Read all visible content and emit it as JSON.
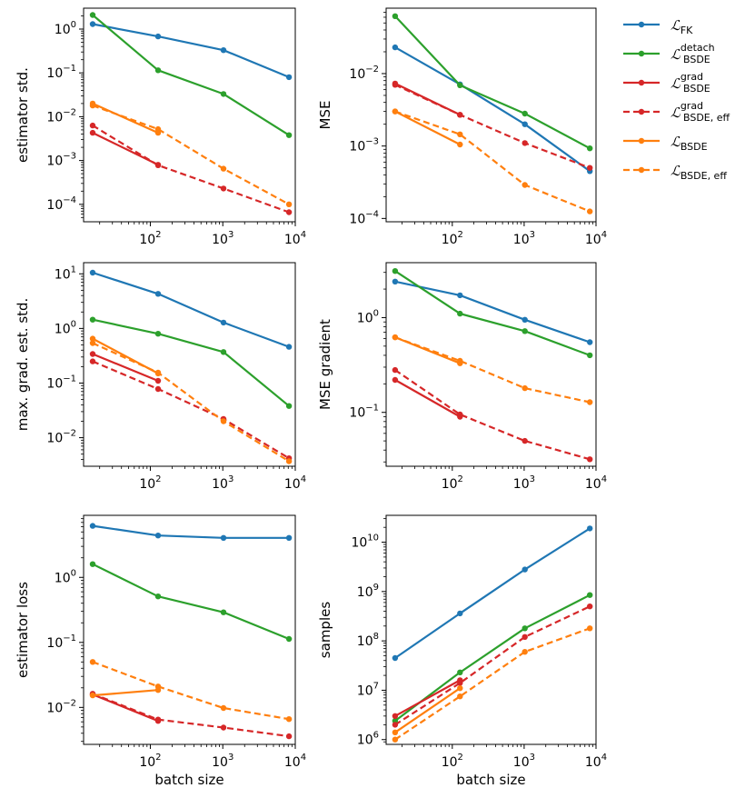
{
  "colors": {
    "fk": "#1f77b4",
    "detach": "#2ca02c",
    "grad": "#d62728",
    "bsde": "#ff7f0e"
  },
  "legend": [
    {
      "key": "fk",
      "main": "ℒ",
      "sub": "FK",
      "sup": "",
      "dashed": false
    },
    {
      "key": "detach",
      "main": "ℒ",
      "sub": "BSDE",
      "sup": "detach",
      "dashed": false
    },
    {
      "key": "grad",
      "main": "ℒ",
      "sub": "BSDE",
      "sup": "grad",
      "dashed": false
    },
    {
      "key": "grad",
      "main": "ℒ",
      "sub": "BSDE, eff",
      "sup": "grad",
      "dashed": true
    },
    {
      "key": "bsde",
      "main": "ℒ",
      "sub": "BSDE",
      "sup": "",
      "dashed": false
    },
    {
      "key": "bsde",
      "main": "ℒ",
      "sub": "BSDE, eff",
      "sup": "",
      "dashed": true
    }
  ],
  "xlabel": "batch size",
  "xticks": [
    {
      "value": 100,
      "base": "10",
      "exp": "2"
    },
    {
      "value": 1000,
      "base": "10",
      "exp": "3"
    },
    {
      "value": 10000,
      "base": "10",
      "exp": "4"
    }
  ],
  "chart_data": [
    {
      "type": "line",
      "ylabel": "estimator std.",
      "xscale": "log",
      "yscale": "log",
      "xlim": [
        12,
        10000
      ],
      "ylim": [
        4e-05,
        3
      ],
      "yticks": [
        {
          "value": 0.0001,
          "label": "10",
          "exp": "−4"
        },
        {
          "value": 0.001,
          "label": "10",
          "exp": "−3"
        },
        {
          "value": 0.01,
          "label": "10",
          "exp": "−2"
        },
        {
          "value": 0.1,
          "label": "10",
          "exp": "−1"
        },
        {
          "value": 1,
          "label": "10",
          "exp": "0"
        }
      ],
      "series": [
        {
          "name": "FK",
          "key": "fk",
          "dashed": false,
          "x": [
            16,
            128,
            1024,
            8192
          ],
          "y": [
            1.3,
            0.68,
            0.33,
            0.08
          ]
        },
        {
          "name": "BSDE detach",
          "key": "detach",
          "dashed": false,
          "x": [
            16,
            128,
            1024,
            8192
          ],
          "y": [
            2.1,
            0.115,
            0.033,
            0.0038
          ]
        },
        {
          "name": "BSDE grad",
          "key": "grad",
          "dashed": false,
          "x": [
            16,
            128
          ],
          "y": [
            0.0043,
            0.0008
          ]
        },
        {
          "name": "BSDE grad eff",
          "key": "grad",
          "dashed": true,
          "x": [
            16,
            128,
            1024,
            8192
          ],
          "y": [
            0.0063,
            0.00078,
            0.00023,
            6.6e-05
          ]
        },
        {
          "name": "BSDE",
          "key": "bsde",
          "dashed": false,
          "x": [
            16,
            128
          ],
          "y": [
            0.02,
            0.0043
          ]
        },
        {
          "name": "BSDE eff",
          "key": "bsde",
          "dashed": true,
          "x": [
            16,
            128,
            1024,
            8192
          ],
          "y": [
            0.018,
            0.0052,
            0.00065,
            0.0001
          ]
        }
      ]
    },
    {
      "type": "line",
      "ylabel": "MSE",
      "xscale": "log",
      "yscale": "log",
      "xlim": [
        12,
        10000
      ],
      "ylim": [
        9e-05,
        0.08
      ],
      "yticks": [
        {
          "value": 0.0001,
          "label": "10",
          "exp": "−4"
        },
        {
          "value": 0.001,
          "label": "10",
          "exp": "−3"
        },
        {
          "value": 0.01,
          "label": "10",
          "exp": "−2"
        }
      ],
      "series": [
        {
          "name": "FK",
          "key": "fk",
          "dashed": false,
          "x": [
            16,
            128,
            1024,
            8192
          ],
          "y": [
            0.023,
            0.0071,
            0.002,
            0.00045
          ]
        },
        {
          "name": "BSDE detach",
          "key": "detach",
          "dashed": false,
          "x": [
            16,
            128,
            1024,
            8192
          ],
          "y": [
            0.062,
            0.0069,
            0.0028,
            0.00093
          ]
        },
        {
          "name": "BSDE grad",
          "key": "grad",
          "dashed": false,
          "x": [
            16,
            128
          ],
          "y": [
            0.0073,
            0.0027
          ]
        },
        {
          "name": "BSDE grad eff",
          "key": "grad",
          "dashed": true,
          "x": [
            16,
            128,
            1024,
            8192
          ],
          "y": [
            0.007,
            0.0027,
            0.0011,
            0.0005
          ]
        },
        {
          "name": "BSDE",
          "key": "bsde",
          "dashed": false,
          "x": [
            16,
            128
          ],
          "y": [
            0.003,
            0.00105
          ]
        },
        {
          "name": "BSDE eff",
          "key": "bsde",
          "dashed": true,
          "x": [
            16,
            128,
            1024,
            8192
          ],
          "y": [
            0.003,
            0.00145,
            0.00029,
            0.000125
          ]
        }
      ]
    },
    {
      "type": "line",
      "ylabel": "max. grad. est. std.",
      "xscale": "log",
      "yscale": "log",
      "xlim": [
        12,
        10000
      ],
      "ylim": [
        0.003,
        16
      ],
      "yticks": [
        {
          "value": 0.01,
          "label": "10",
          "exp": "−2"
        },
        {
          "value": 0.1,
          "label": "10",
          "exp": "−1"
        },
        {
          "value": 1,
          "label": "10",
          "exp": "0"
        },
        {
          "value": 10,
          "label": "10",
          "exp": "1"
        }
      ],
      "series": [
        {
          "name": "FK",
          "key": "fk",
          "dashed": false,
          "x": [
            16,
            128,
            1024,
            8192
          ],
          "y": [
            10.5,
            4.3,
            1.28,
            0.46
          ]
        },
        {
          "name": "BSDE detach",
          "key": "detach",
          "dashed": false,
          "x": [
            16,
            128,
            1024,
            8192
          ],
          "y": [
            1.45,
            0.8,
            0.37,
            0.038
          ]
        },
        {
          "name": "BSDE grad",
          "key": "grad",
          "dashed": false,
          "x": [
            16,
            128
          ],
          "y": [
            0.34,
            0.11
          ]
        },
        {
          "name": "BSDE grad eff",
          "key": "grad",
          "dashed": true,
          "x": [
            16,
            128,
            1024,
            8192
          ],
          "y": [
            0.25,
            0.078,
            0.022,
            0.0042
          ]
        },
        {
          "name": "BSDE",
          "key": "bsde",
          "dashed": false,
          "x": [
            16,
            128
          ],
          "y": [
            0.65,
            0.15
          ]
        },
        {
          "name": "BSDE eff",
          "key": "bsde",
          "dashed": true,
          "x": [
            16,
            128,
            1024,
            8192
          ],
          "y": [
            0.54,
            0.155,
            0.02,
            0.0037
          ]
        }
      ]
    },
    {
      "type": "line",
      "ylabel": "MSE gradient",
      "xscale": "log",
      "yscale": "log",
      "xlim": [
        12,
        10000
      ],
      "ylim": [
        0.027,
        3.8
      ],
      "yticks": [
        {
          "value": 0.1,
          "label": "10",
          "exp": "−1"
        },
        {
          "value": 1,
          "label": "10",
          "exp": "0"
        }
      ],
      "series": [
        {
          "name": "FK",
          "key": "fk",
          "dashed": false,
          "x": [
            16,
            128,
            1024,
            8192
          ],
          "y": [
            2.4,
            1.72,
            0.95,
            0.55
          ]
        },
        {
          "name": "BSDE detach",
          "key": "detach",
          "dashed": false,
          "x": [
            16,
            128,
            1024,
            8192
          ],
          "y": [
            3.1,
            1.1,
            0.72,
            0.4
          ]
        },
        {
          "name": "BSDE grad",
          "key": "grad",
          "dashed": false,
          "x": [
            16,
            128
          ],
          "y": [
            0.22,
            0.09
          ]
        },
        {
          "name": "BSDE grad eff",
          "key": "grad",
          "dashed": true,
          "x": [
            16,
            128,
            1024,
            8192
          ],
          "y": [
            0.28,
            0.095,
            0.05,
            0.032
          ]
        },
        {
          "name": "BSDE",
          "key": "bsde",
          "dashed": false,
          "x": [
            16,
            128
          ],
          "y": [
            0.62,
            0.33
          ]
        },
        {
          "name": "BSDE eff",
          "key": "bsde",
          "dashed": true,
          "x": [
            16,
            128,
            1024,
            8192
          ],
          "y": [
            0.62,
            0.35,
            0.18,
            0.128
          ]
        }
      ]
    },
    {
      "type": "line",
      "ylabel": "estimator loss",
      "xscale": "log",
      "yscale": "log",
      "xlim": [
        12,
        10000
      ],
      "ylim": [
        0.0027,
        9
      ],
      "yticks": [
        {
          "value": 0.01,
          "label": "10",
          "exp": "−2"
        },
        {
          "value": 0.1,
          "label": "10",
          "exp": "−1"
        },
        {
          "value": 1,
          "label": "10",
          "exp": "0"
        }
      ],
      "series": [
        {
          "name": "FK",
          "key": "fk",
          "dashed": false,
          "x": [
            16,
            128,
            1024,
            8192
          ],
          "y": [
            6.2,
            4.4,
            4.05,
            4.05
          ]
        },
        {
          "name": "BSDE detach",
          "key": "detach",
          "dashed": false,
          "x": [
            16,
            128,
            1024,
            8192
          ],
          "y": [
            1.6,
            0.51,
            0.29,
            0.113
          ]
        },
        {
          "name": "BSDE grad",
          "key": "grad",
          "dashed": false,
          "x": [
            16,
            128
          ],
          "y": [
            0.0158,
            0.0062
          ]
        },
        {
          "name": "BSDE grad eff",
          "key": "grad",
          "dashed": true,
          "x": [
            16,
            128,
            1024,
            8192
          ],
          "y": [
            0.0162,
            0.0065,
            0.0049,
            0.0036
          ]
        },
        {
          "name": "BSDE",
          "key": "bsde",
          "dashed": false,
          "x": [
            16,
            128
          ],
          "y": [
            0.0153,
            0.0185
          ]
        },
        {
          "name": "BSDE eff",
          "key": "bsde",
          "dashed": true,
          "x": [
            16,
            128,
            1024,
            8192
          ],
          "y": [
            0.05,
            0.021,
            0.0098,
            0.0066
          ]
        }
      ]
    },
    {
      "type": "line",
      "ylabel": "samples",
      "xscale": "log",
      "yscale": "log",
      "xlim": [
        12,
        10000
      ],
      "ylim": [
        800000,
        35000000000
      ],
      "yticks": [
        {
          "value": 1000000,
          "label": "10",
          "exp": "6"
        },
        {
          "value": 10000000,
          "label": "10",
          "exp": "7"
        },
        {
          "value": 100000000,
          "label": "10",
          "exp": "8"
        },
        {
          "value": 1000000000,
          "label": "10",
          "exp": "9"
        },
        {
          "value": 10000000000,
          "label": "10",
          "exp": "10"
        }
      ],
      "series": [
        {
          "name": "FK",
          "key": "fk",
          "dashed": false,
          "x": [
            16,
            128,
            1024,
            8192
          ],
          "y": [
            45000000,
            360000000,
            2800000000,
            19000000000
          ]
        },
        {
          "name": "BSDE detach",
          "key": "detach",
          "dashed": false,
          "x": [
            16,
            128,
            1024,
            8192
          ],
          "y": [
            2400000,
            23000000,
            180000000,
            850000000
          ]
        },
        {
          "name": "BSDE grad",
          "key": "grad",
          "dashed": false,
          "x": [
            16,
            128
          ],
          "y": [
            3000000,
            16000000
          ]
        },
        {
          "name": "BSDE grad eff",
          "key": "grad",
          "dashed": true,
          "x": [
            16,
            128,
            1024,
            8192
          ],
          "y": [
            2000000,
            14000000,
            120000000,
            500000000
          ]
        },
        {
          "name": "BSDE",
          "key": "bsde",
          "dashed": false,
          "x": [
            16,
            128
          ],
          "y": [
            1400000,
            11000000
          ]
        },
        {
          "name": "BSDE eff",
          "key": "bsde",
          "dashed": true,
          "x": [
            16,
            128,
            1024,
            8192
          ],
          "y": [
            1000000,
            7500000,
            60000000,
            180000000
          ]
        }
      ]
    }
  ]
}
